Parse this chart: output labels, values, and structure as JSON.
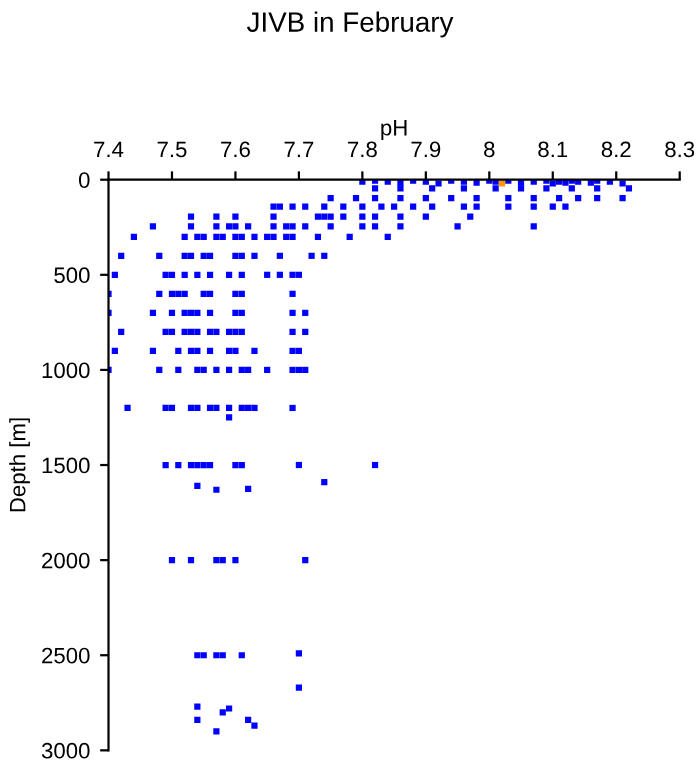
{
  "chart_data": {
    "type": "scatter",
    "title": "JIVB in February",
    "xlabel": "pH",
    "ylabel": "Depth [m]",
    "xlim": [
      7.4,
      8.3
    ],
    "xticks": [
      7.4,
      7.5,
      7.6,
      7.7,
      7.8,
      7.9,
      8,
      8.1,
      8.2,
      8.3
    ],
    "ylim": [
      3000,
      0
    ],
    "yticks": [
      0,
      500,
      1000,
      1500,
      2000,
      2500,
      3000
    ],
    "grid": false,
    "marker": "square",
    "series": [
      {
        "color": "#0000ff",
        "x": [
          7.8,
          7.82,
          7.84,
          7.86,
          7.88,
          7.9,
          7.92,
          7.94,
          7.96,
          7.98,
          8.0,
          8.01,
          8.03,
          8.05,
          8.07,
          8.09,
          8.1,
          8.11,
          8.12,
          8.13,
          8.14,
          8.16,
          8.17,
          8.19,
          8.21,
          7.82,
          7.86,
          7.91,
          7.96,
          8.01,
          8.05,
          8.09,
          8.13,
          8.17,
          8.22,
          7.75,
          7.79,
          7.82,
          7.86,
          7.9,
          7.94,
          7.98,
          8.03,
          8.07,
          8.11,
          8.14,
          8.17,
          8.21,
          7.66,
          7.67,
          7.69,
          7.71,
          7.74,
          7.77,
          7.8,
          7.83,
          7.85,
          7.88,
          7.91,
          7.96,
          7.98,
          8.03,
          8.07,
          8.1,
          8.12,
          7.53,
          7.57,
          7.6,
          7.66,
          7.73,
          7.74,
          7.75,
          7.77,
          7.8,
          7.82,
          7.86,
          7.9,
          7.97,
          7.47,
          7.53,
          7.57,
          7.59,
          7.6,
          7.62,
          7.66,
          7.68,
          7.69,
          7.71,
          7.75,
          7.8,
          7.82,
          7.86,
          7.95,
          8.07,
          7.44,
          7.52,
          7.54,
          7.55,
          7.57,
          7.58,
          7.6,
          7.61,
          7.63,
          7.65,
          7.66,
          7.68,
          7.69,
          7.73,
          7.78,
          7.84,
          7.42,
          7.48,
          7.52,
          7.53,
          7.55,
          7.56,
          7.6,
          7.61,
          7.63,
          7.67,
          7.72,
          7.74,
          7.41,
          7.49,
          7.5,
          7.52,
          7.54,
          7.56,
          7.59,
          7.61,
          7.65,
          7.67,
          7.69,
          7.7,
          7.4,
          7.48,
          7.5,
          7.51,
          7.52,
          7.55,
          7.56,
          7.6,
          7.61,
          7.69,
          7.4,
          7.47,
          7.5,
          7.52,
          7.53,
          7.54,
          7.56,
          7.6,
          7.61,
          7.69,
          7.71,
          7.42,
          7.49,
          7.5,
          7.52,
          7.53,
          7.54,
          7.56,
          7.57,
          7.59,
          7.6,
          7.61,
          7.69,
          7.71,
          7.41,
          7.47,
          7.51,
          7.53,
          7.54,
          7.56,
          7.59,
          7.6,
          7.63,
          7.69,
          7.7,
          7.4,
          7.48,
          7.51,
          7.54,
          7.55,
          7.57,
          7.59,
          7.61,
          7.62,
          7.65,
          7.69,
          7.7,
          7.71,
          7.43,
          7.49,
          7.5,
          7.53,
          7.54,
          7.56,
          7.57,
          7.59,
          7.61,
          7.62,
          7.63,
          7.69,
          7.59,
          7.49,
          7.51,
          7.53,
          7.54,
          7.55,
          7.56,
          7.6,
          7.61,
          7.7,
          7.82,
          7.54,
          7.57,
          7.62,
          7.74,
          7.5,
          7.53,
          7.57,
          7.58,
          7.6,
          7.71,
          7.54,
          7.55,
          7.57,
          7.58,
          7.61,
          7.7,
          7.7,
          7.54,
          7.59,
          7.58,
          7.54,
          7.62,
          7.63,
          7.57
        ],
        "values": [
          10,
          5,
          10,
          15,
          5,
          10,
          20,
          5,
          10,
          15,
          5,
          10,
          5,
          15,
          10,
          5,
          20,
          10,
          15,
          5,
          10,
          15,
          5,
          10,
          20,
          45,
          45,
          45,
          45,
          45,
          45,
          45,
          45,
          45,
          45,
          97,
          97,
          97,
          97,
          97,
          97,
          97,
          97,
          97,
          97,
          97,
          97,
          97,
          142,
          142,
          142,
          142,
          142,
          142,
          142,
          142,
          142,
          142,
          142,
          142,
          142,
          142,
          142,
          142,
          142,
          194,
          194,
          194,
          194,
          194,
          194,
          194,
          194,
          194,
          194,
          194,
          194,
          194,
          245,
          245,
          245,
          245,
          245,
          245,
          245,
          245,
          245,
          245,
          245,
          245,
          245,
          245,
          245,
          245,
          300,
          300,
          300,
          300,
          300,
          300,
          300,
          300,
          300,
          300,
          300,
          300,
          300,
          300,
          300,
          300,
          400,
          400,
          400,
          400,
          400,
          400,
          400,
          400,
          400,
          400,
          400,
          400,
          500,
          500,
          500,
          500,
          500,
          500,
          500,
          500,
          500,
          500,
          500,
          500,
          600,
          600,
          600,
          600,
          600,
          600,
          600,
          600,
          600,
          600,
          700,
          700,
          700,
          700,
          700,
          700,
          700,
          700,
          700,
          700,
          700,
          800,
          800,
          800,
          800,
          800,
          800,
          800,
          800,
          800,
          800,
          800,
          800,
          800,
          900,
          900,
          900,
          900,
          900,
          900,
          900,
          900,
          900,
          900,
          900,
          1000,
          1000,
          1000,
          1000,
          1000,
          1000,
          1000,
          1000,
          1000,
          1000,
          1000,
          1000,
          1000,
          1200,
          1200,
          1200,
          1200,
          1200,
          1200,
          1200,
          1200,
          1200,
          1200,
          1200,
          1200,
          1250,
          1500,
          1500,
          1500,
          1500,
          1500,
          1500,
          1500,
          1500,
          1500,
          1500,
          1610,
          1630,
          1625,
          1590,
          2000,
          2000,
          2000,
          2000,
          2000,
          2000,
          2500,
          2500,
          2500,
          2500,
          2500,
          2490,
          2670,
          2770,
          2780,
          2800,
          2840,
          2840,
          2870,
          2900
        ]
      },
      {
        "color": "#ff9900",
        "x": [
          8.02
        ],
        "values": [
          20
        ]
      }
    ]
  }
}
